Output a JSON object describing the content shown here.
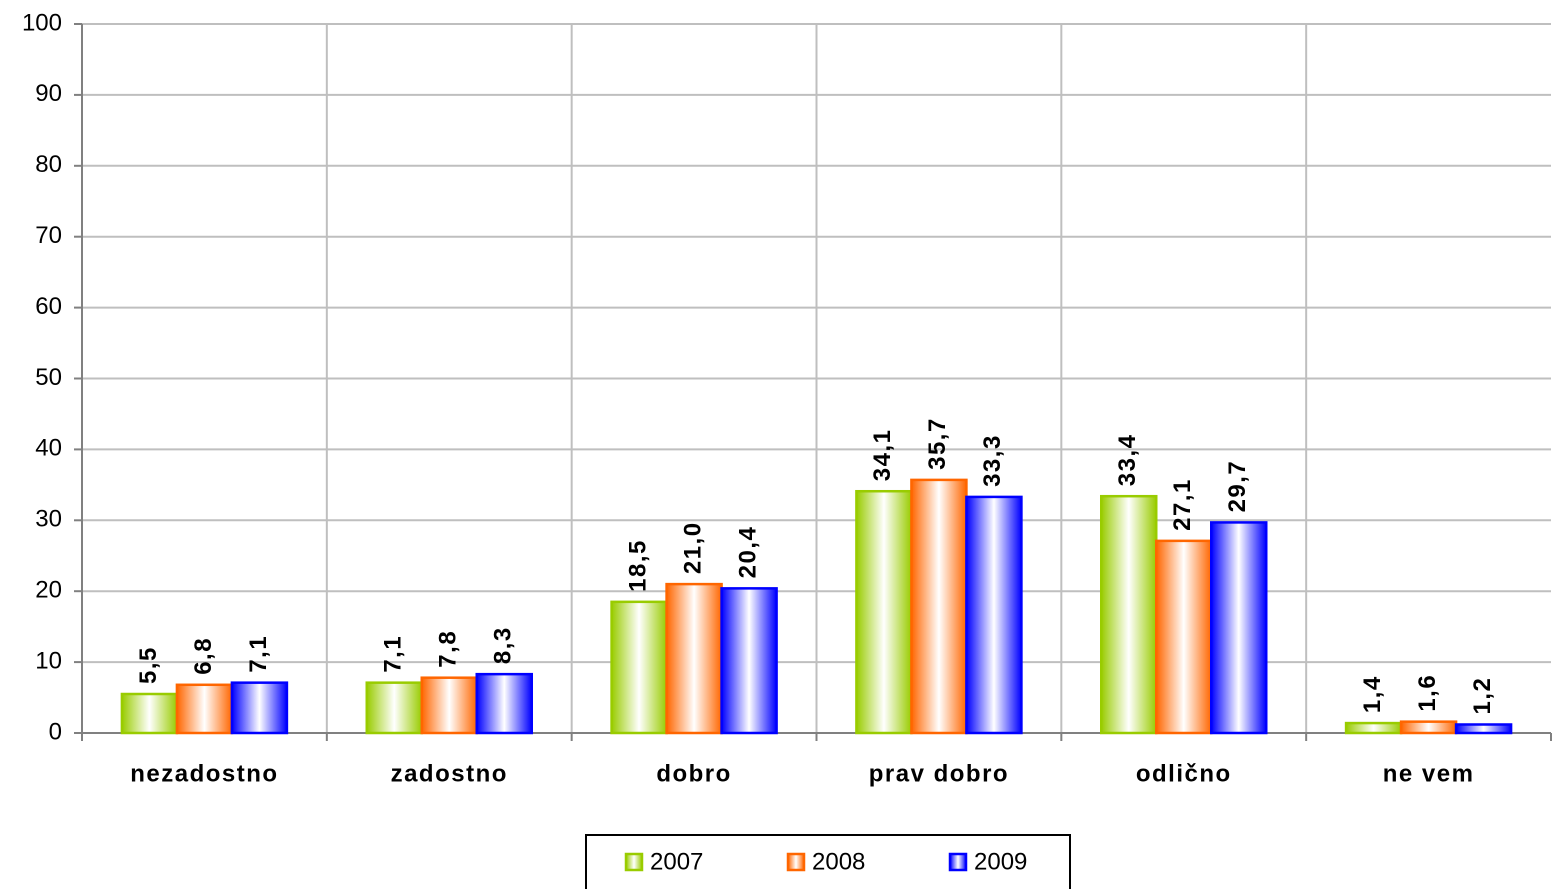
{
  "chart_data": {
    "type": "bar",
    "categories": [
      "nezadostno",
      "zadostno",
      "dobro",
      "prav dobro",
      "odlično",
      "ne vem"
    ],
    "series": [
      {
        "name": "2007",
        "color": "#99cc00",
        "values": [
          5.5,
          7.1,
          18.5,
          34.1,
          33.4,
          1.4
        ],
        "value_labels": [
          "5,5",
          "7,1",
          "18,5",
          "34,1",
          "33,4",
          "1,4"
        ]
      },
      {
        "name": "2008",
        "color": "#ff6600",
        "values": [
          6.8,
          7.8,
          21.0,
          35.7,
          27.1,
          1.6
        ],
        "value_labels": [
          "6,8",
          "7,8",
          "21,0",
          "35,7",
          "27,1",
          "1,6"
        ]
      },
      {
        "name": "2009",
        "color": "#0000ff",
        "values": [
          7.1,
          8.3,
          20.4,
          33.3,
          29.7,
          1.2
        ],
        "value_labels": [
          "7,1",
          "8,3",
          "20,4",
          "33,3",
          "29,7",
          "1,2"
        ]
      }
    ],
    "ylim": [
      0,
      100
    ],
    "yticks": [
      0,
      10,
      20,
      30,
      40,
      50,
      60,
      70,
      80,
      90,
      100
    ],
    "grid": true,
    "legend": "bottom"
  }
}
